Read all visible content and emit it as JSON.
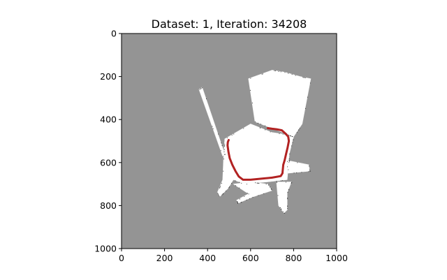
{
  "chart_data": {
    "type": "heatmap",
    "title": "Dataset: 1, Iteration: 34208",
    "xlabel": "",
    "ylabel": "",
    "xlim": [
      0,
      1000
    ],
    "ylim": [
      1000,
      0
    ],
    "y_axis_inverted": true,
    "x_ticks": [
      0,
      200,
      400,
      600,
      800,
      1000
    ],
    "y_ticks": [
      0,
      200,
      400,
      600,
      800,
      1000
    ],
    "grid": false,
    "colors": {
      "unknown_area": "#949494",
      "free_space": "#ffffff",
      "obstacle_pixels": "#202020",
      "trajectory": "#b22222"
    },
    "free_space_regions": [
      {
        "name": "upper-block",
        "polygon": [
          [
            590,
            210
          ],
          [
            700,
            170
          ],
          [
            760,
            180
          ],
          [
            830,
            200
          ],
          [
            880,
            210
          ],
          [
            840,
            420
          ],
          [
            800,
            480
          ],
          [
            620,
            410
          ]
        ]
      },
      {
        "name": "left-diagonal-strip",
        "polygon": [
          [
            360,
            260
          ],
          [
            375,
            250
          ],
          [
            480,
            560
          ],
          [
            470,
            570
          ]
        ]
      },
      {
        "name": "central-body",
        "polygon": [
          [
            480,
            490
          ],
          [
            600,
            420
          ],
          [
            700,
            460
          ],
          [
            770,
            470
          ],
          [
            800,
            480
          ],
          [
            780,
            560
          ],
          [
            770,
            680
          ],
          [
            680,
            690
          ],
          [
            570,
            700
          ],
          [
            520,
            680
          ],
          [
            495,
            720
          ],
          [
            455,
            760
          ],
          [
            445,
            740
          ],
          [
            470,
            680
          ],
          [
            475,
            560
          ]
        ]
      },
      {
        "name": "right-arm",
        "polygon": [
          [
            770,
            590
          ],
          [
            870,
            610
          ],
          [
            875,
            640
          ],
          [
            770,
            650
          ]
        ]
      },
      {
        "name": "lower-left-fan",
        "polygon": [
          [
            520,
            700
          ],
          [
            600,
            690
          ],
          [
            680,
            700
          ],
          [
            700,
            730
          ],
          [
            610,
            760
          ],
          [
            540,
            790
          ],
          [
            535,
            775
          ],
          [
            590,
            745
          ]
        ]
      },
      {
        "name": "lower-right-leg",
        "polygon": [
          [
            720,
            690
          ],
          [
            790,
            690
          ],
          [
            770,
            740
          ],
          [
            770,
            820
          ],
          [
            755,
            835
          ],
          [
            730,
            800
          ]
        ]
      }
    ],
    "trajectory": {
      "x": [
        680,
        700,
        720,
        745,
        765,
        775,
        778,
        772,
        765,
        758,
        752,
        750,
        748,
        740,
        700,
        650,
        600,
        565,
        545,
        530,
        515,
        503,
        497,
        493,
        494,
        498
      ],
      "y": [
        440,
        443,
        445,
        450,
        468,
        480,
        500,
        530,
        560,
        590,
        610,
        630,
        650,
        663,
        670,
        675,
        680,
        680,
        665,
        640,
        610,
        580,
        550,
        520,
        505,
        495
      ]
    }
  }
}
